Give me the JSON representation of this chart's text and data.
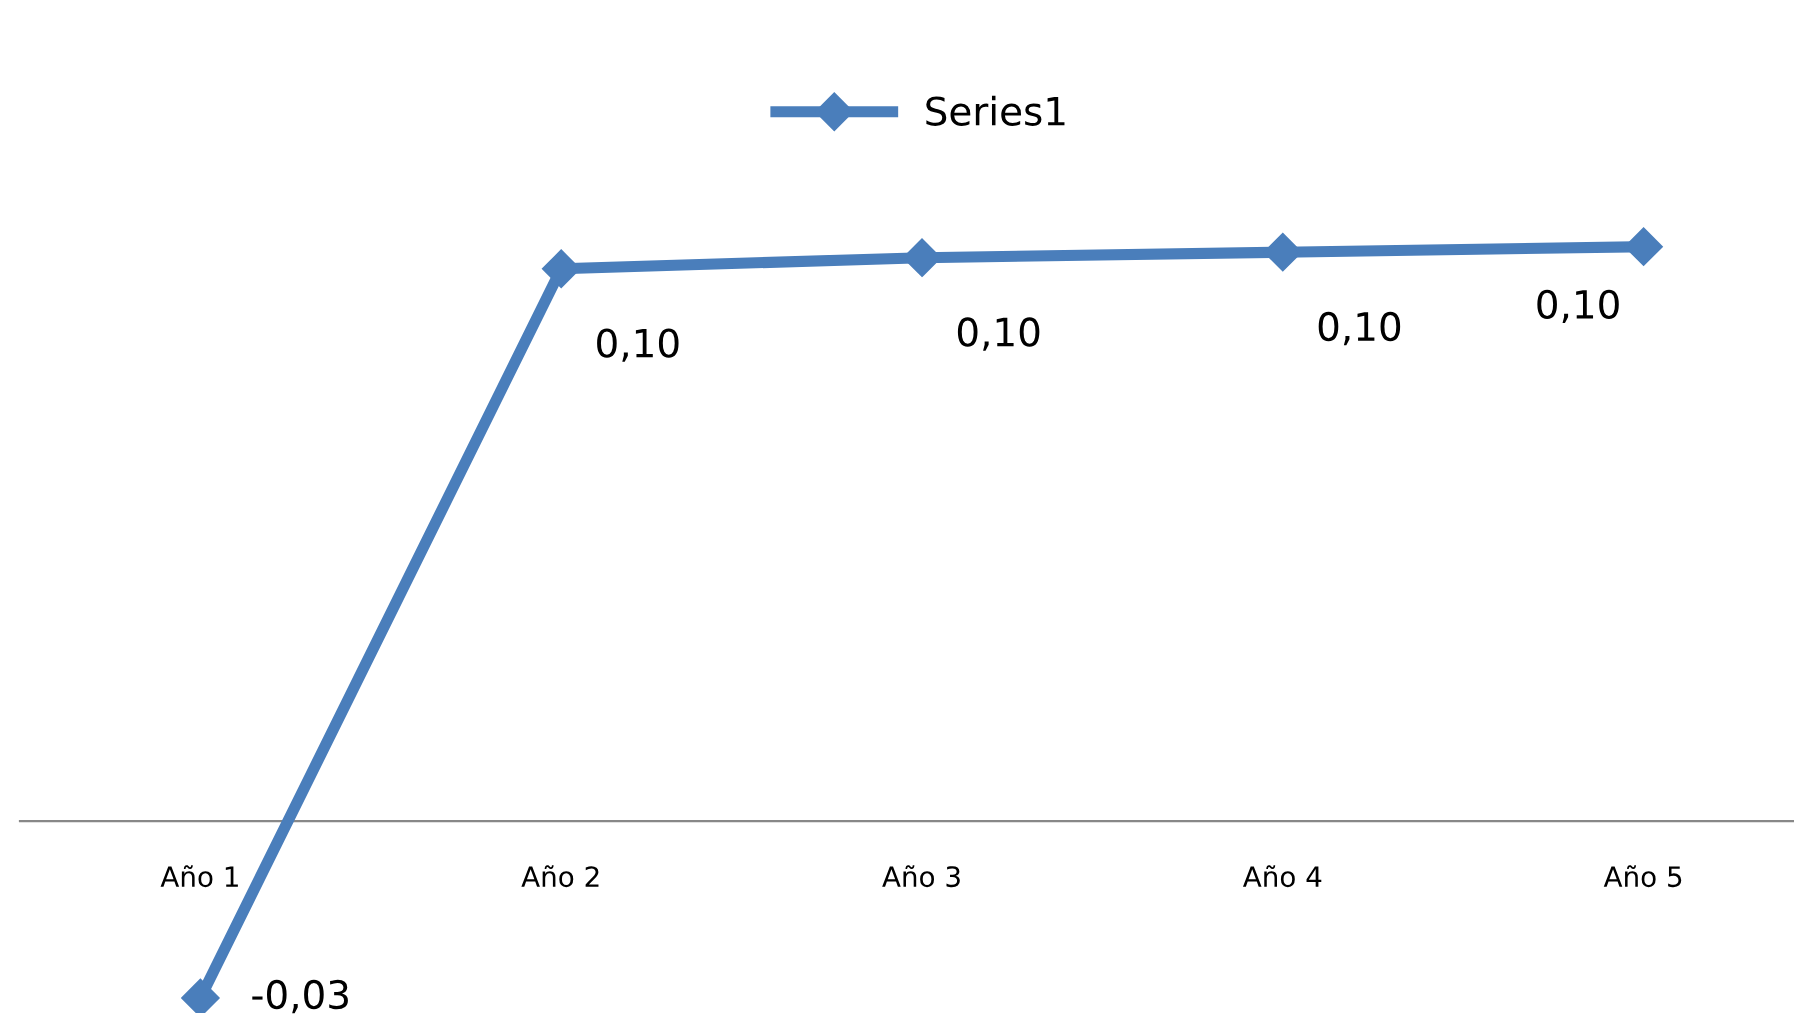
{
  "chart_data": {
    "type": "line",
    "categories": [
      "Año 1",
      "Año 2",
      "Año 3",
      "Año 4",
      "Año 5"
    ],
    "series": [
      {
        "name": "Series1",
        "color": "#4a7ebb",
        "values": [
          -0.032,
          0.1,
          0.102,
          0.103,
          0.104
        ],
        "value_labels": [
          "-0,03",
          "0,10",
          "0,10",
          "0,10",
          "0,10"
        ]
      }
    ],
    "marker": "diamond",
    "legend": "top",
    "grid": false
  }
}
